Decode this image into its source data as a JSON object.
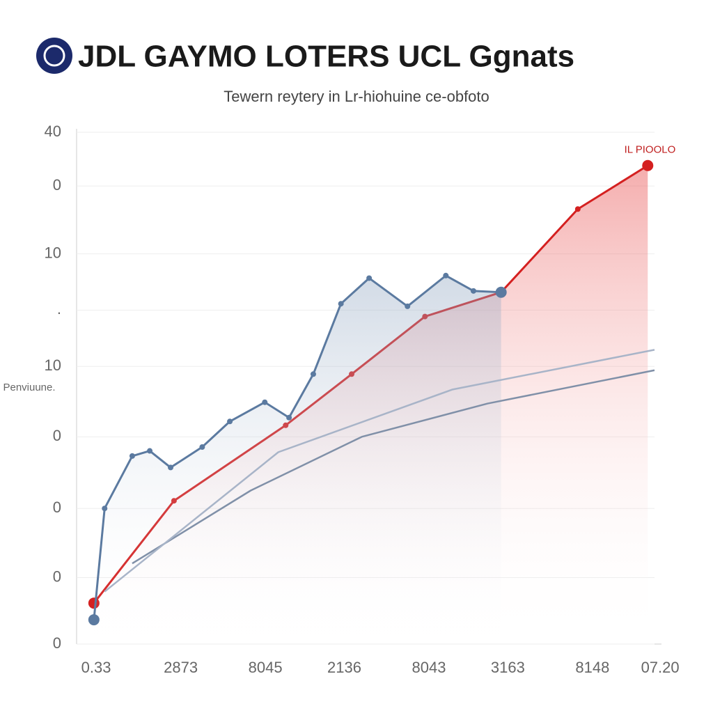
{
  "chart_data": {
    "type": "line",
    "title": "JDL GAYMO LOTERS UCL Ggnats",
    "subtitle": "Tewern reytery in Lr-hiohuine ce-obfoto",
    "y_label": "Penviuune.",
    "annotation": "IL PIOOLO",
    "xlim": [
      0,
      100
    ],
    "xticks": [
      {
        "value": 1,
        "label": "0.33"
      },
      {
        "value": 16,
        "label": "2873"
      },
      {
        "value": 31,
        "label": "8045"
      },
      {
        "value": 45,
        "label": "2136"
      },
      {
        "value": 60,
        "label": "8043"
      },
      {
        "value": 74,
        "label": "3163"
      },
      {
        "value": 89,
        "label": "8148"
      },
      {
        "value": 101,
        "label": "07.20"
      }
    ],
    "ylim": [
      0,
      40
    ],
    "yticks": [
      0,
      {
        "value": 5.2,
        "label": "0"
      },
      {
        "value": 10.6,
        "label": "0"
      },
      {
        "value": 16.2,
        "label": "0"
      },
      {
        "value": 21.7,
        "label": "10"
      },
      {
        "value": 26.1,
        "label": "."
      },
      {
        "value": 30.5,
        "label": "10"
      },
      {
        "value": 35.8,
        "label": "0"
      },
      40
    ],
    "grid": true,
    "series": [
      {
        "color": "#d42020",
        "fill": true,
        "x": [
          0.6,
          14.8,
          34.6,
          46.3,
          59.3,
          72.8,
          86.4,
          98.8
        ],
        "values": [
          3.2,
          11.2,
          17.1,
          21.1,
          25.6,
          27.5,
          34.0,
          37.4
        ]
      },
      {
        "color": "#5b7aa0",
        "fill": true,
        "x": [
          0.6,
          2.5,
          7.4,
          10.5,
          14.2,
          19.8,
          24.7,
          30.9,
          35.2,
          39.5,
          44.4,
          49.4,
          56.2,
          63.0,
          67.9,
          72.8
        ],
        "values": [
          1.9,
          10.6,
          14.7,
          15.1,
          13.8,
          15.4,
          17.4,
          18.9,
          17.7,
          21.1,
          26.6,
          28.6,
          26.4,
          28.8,
          27.6,
          27.5
        ]
      },
      {
        "color": "#8090a8",
        "fill": false,
        "x": [
          7.4,
          28.4,
          48.1,
          70.4,
          100
        ],
        "values": [
          6.3,
          12.0,
          16.2,
          18.8,
          21.4
        ]
      },
      {
        "color": "#a8b4c8",
        "fill": false,
        "x": [
          2.5,
          33.3,
          64.2,
          100
        ],
        "values": [
          4.1,
          15.0,
          19.9,
          23.0
        ]
      }
    ]
  }
}
